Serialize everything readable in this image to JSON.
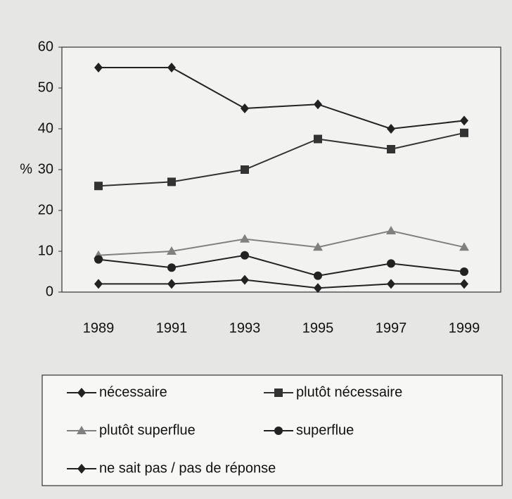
{
  "chart_data": {
    "type": "line",
    "ylabel": "%",
    "categories": [
      "1989",
      "1991",
      "1993",
      "1995",
      "1997",
      "1999"
    ],
    "series": [
      {
        "name": "nécessaire",
        "color": "#222222",
        "marker": "diamond",
        "values": [
          55,
          55,
          45,
          46,
          40,
          42
        ]
      },
      {
        "name": "plutôt nécessaire",
        "color": "#333333",
        "marker": "square",
        "values": [
          26,
          27,
          30,
          37.5,
          35,
          39
        ]
      },
      {
        "name": "plutôt superflue",
        "color": "#808080",
        "marker": "triangle",
        "values": [
          9,
          10,
          13,
          11,
          15,
          11
        ]
      },
      {
        "name": "superflue",
        "color": "#222222",
        "marker": "circle",
        "values": [
          8,
          6,
          9,
          4,
          7,
          5
        ]
      },
      {
        "name": "ne sait pas / pas de réponse",
        "color": "#222222",
        "marker": "diamond",
        "values": [
          2,
          2,
          3,
          1,
          2,
          2
        ]
      }
    ],
    "ylim": [
      0,
      60
    ],
    "yticks": [
      0,
      10,
      20,
      30,
      40,
      50,
      60
    ],
    "grid": false
  }
}
